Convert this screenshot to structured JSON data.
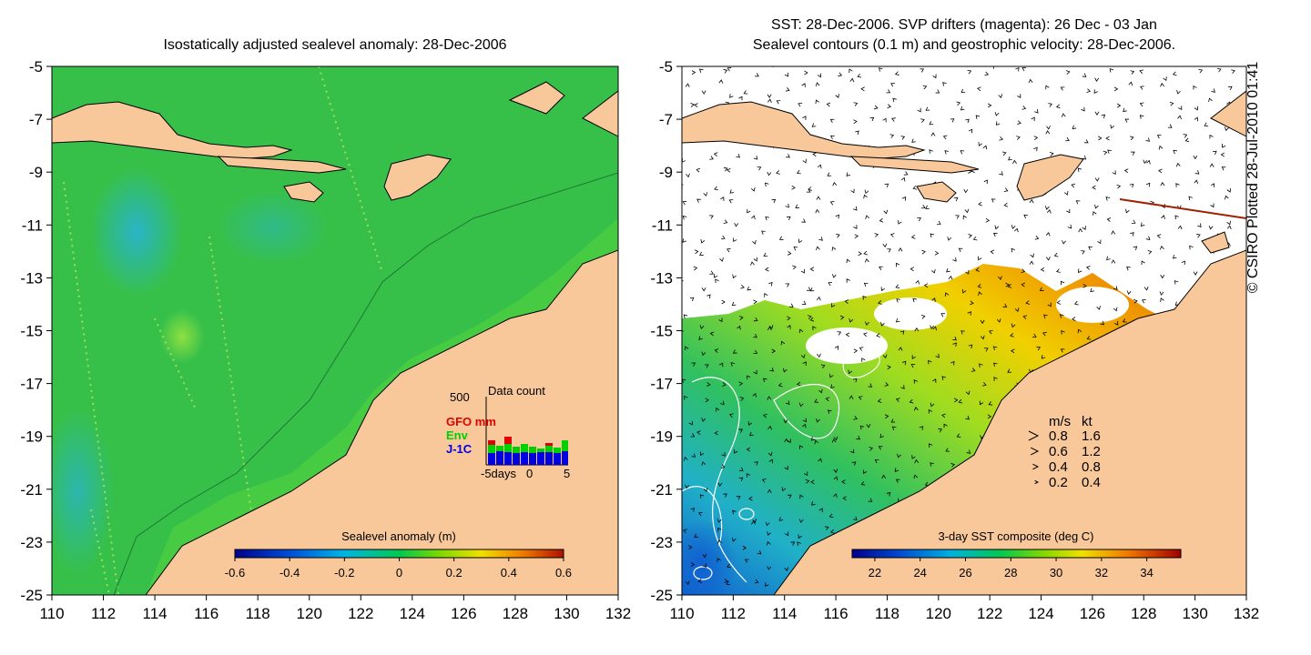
{
  "left_panel": {
    "title": "Isostatically adjusted sealevel anomaly: 28-Dec-2006",
    "colorbar": {
      "label": "Sealevel anomaly (m)",
      "ticks": [
        "-0.6",
        "-0.4",
        "-0.2",
        "0",
        "0.2",
        "0.4",
        "0.6"
      ],
      "range": [
        -0.6,
        0.6
      ]
    },
    "data_count": {
      "title": "Data count",
      "ymax_label": "500",
      "legend": [
        {
          "label": "GFO mm",
          "color": "#e00000"
        },
        {
          "label": "Env",
          "color": "#00d000"
        },
        {
          "label": "J-1C",
          "color": "#0000e0"
        }
      ],
      "x_ticks": [
        "-5days",
        "0",
        "5"
      ]
    }
  },
  "right_panel": {
    "title_line1": "SST: 28-Dec-2006. SVP drifters (magenta): 26 Dec - 03 Jan",
    "title_line2": "Sealevel contours (0.1 m) and geostrophic velocity: 28-Dec-2006.",
    "colorbar": {
      "label": "3-day SST composite (deg C)",
      "ticks": [
        "22",
        "24",
        "26",
        "28",
        "30",
        "32",
        "34"
      ],
      "range": [
        21,
        35.5
      ]
    },
    "speed_legend": {
      "header_ms": "m/s",
      "header_kt": "kt",
      "rows": [
        {
          "ms": "0.8",
          "kt": "1.6"
        },
        {
          "ms": "0.6",
          "kt": "1.2"
        },
        {
          "ms": "0.4",
          "kt": "0.8"
        },
        {
          "ms": "0.2",
          "kt": "0.4"
        }
      ]
    }
  },
  "axes": {
    "lon_ticks": [
      "110",
      "112",
      "114",
      "116",
      "118",
      "120",
      "122",
      "124",
      "126",
      "128",
      "130",
      "132"
    ],
    "lat_ticks": [
      "-5",
      "-7",
      "-9",
      "-11",
      "-13",
      "-15",
      "-17",
      "-19",
      "-21",
      "-23",
      "-25"
    ]
  },
  "credit": "© CSIRO Plotted 28-Jul-2010 01:41",
  "colors": {
    "land": "#f9c89a",
    "ocean_green": "#35c24a",
    "ocean_cyan": "#3cc8b0"
  }
}
